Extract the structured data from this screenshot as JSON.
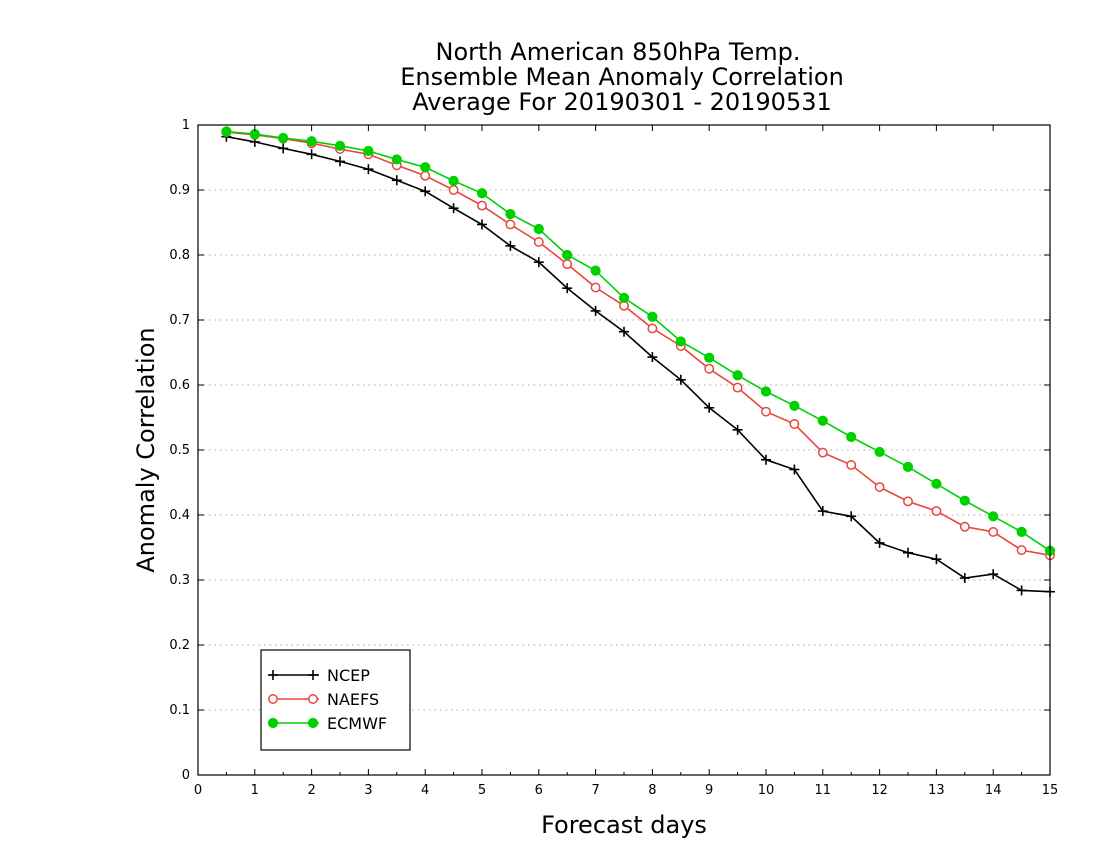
{
  "chart_data": {
    "type": "line",
    "title_lines": [
      "North American 850hPa Temp.",
      "Ensemble Mean Anomaly Correlation",
      "Average For 20190301 - 20190531"
    ],
    "xlabel": "Forecast days",
    "ylabel": "Anomaly Correlation",
    "xlim": [
      0,
      15
    ],
    "ylim": [
      0,
      1
    ],
    "x_ticks": [
      0,
      1,
      2,
      3,
      4,
      5,
      6,
      7,
      8,
      9,
      10,
      11,
      12,
      13,
      14,
      15
    ],
    "x_tick_labels": [
      "0",
      "1",
      "2",
      "3",
      "4",
      "5",
      "6",
      "7",
      "8",
      "9",
      "10",
      "11",
      "12",
      "13",
      "14",
      "15"
    ],
    "y_ticks": [
      0,
      0.1,
      0.2,
      0.3,
      0.4,
      0.5,
      0.6,
      0.7,
      0.8,
      0.9,
      1
    ],
    "y_tick_labels": [
      "0",
      "0.1",
      "0.2",
      "0.3",
      "0.4",
      "0.5",
      "0.6",
      "0.7",
      "0.8",
      "0.9",
      "1"
    ],
    "grid": "horizontal dotted",
    "legend_position": "bottom-left",
    "x": [
      0.5,
      1,
      1.5,
      2,
      2.5,
      3,
      3.5,
      4,
      4.5,
      5,
      5.5,
      6,
      6.5,
      7,
      7.5,
      8,
      8.5,
      9,
      9.5,
      10,
      10.5,
      11,
      11.5,
      12,
      12.5,
      13,
      13.5,
      14,
      14.5,
      15
    ],
    "series": [
      {
        "name": "NCEP",
        "color": "#000000",
        "marker": "plus",
        "values": [
          0.982,
          0.974,
          0.964,
          0.955,
          0.944,
          0.932,
          0.915,
          0.898,
          0.872,
          0.847,
          0.814,
          0.789,
          0.749,
          0.714,
          0.682,
          0.643,
          0.608,
          0.565,
          0.531,
          0.485,
          0.47,
          0.406,
          0.398,
          0.357,
          0.342,
          0.332,
          0.303,
          0.309,
          0.284,
          0.282
        ]
      },
      {
        "name": "NAEFS",
        "color": "#e8463c",
        "marker": "open-circle",
        "values": [
          0.989,
          0.985,
          0.979,
          0.972,
          0.963,
          0.955,
          0.938,
          0.922,
          0.9,
          0.876,
          0.847,
          0.82,
          0.786,
          0.75,
          0.722,
          0.687,
          0.66,
          0.625,
          0.596,
          0.559,
          0.54,
          0.496,
          0.477,
          0.443,
          0.421,
          0.406,
          0.382,
          0.374,
          0.346,
          0.338
        ]
      },
      {
        "name": "ECMWF",
        "color": "#00d000",
        "marker": "filled-circle",
        "values": [
          0.99,
          0.986,
          0.98,
          0.975,
          0.968,
          0.96,
          0.947,
          0.935,
          0.914,
          0.895,
          0.863,
          0.84,
          0.8,
          0.776,
          0.734,
          0.705,
          0.667,
          0.642,
          0.615,
          0.59,
          0.568,
          0.545,
          0.52,
          0.497,
          0.474,
          0.448,
          0.422,
          0.398,
          0.374,
          0.345
        ]
      }
    ]
  }
}
